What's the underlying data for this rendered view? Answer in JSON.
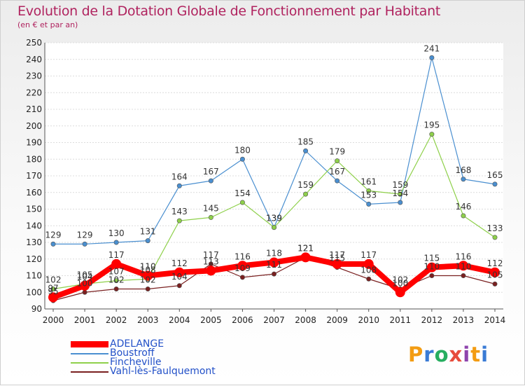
{
  "header": {
    "title": "Evolution de la Dotation Globale de Fonctionnement par Habitant",
    "subtitle": "(en € et par an)"
  },
  "logo": {
    "text": "Proxiti",
    "colors": [
      "#f39c12",
      "#3a7bd5",
      "#27ae60",
      "#e74c3c",
      "#8e44ad"
    ]
  },
  "chart_data": {
    "type": "line",
    "title": "Evolution de la Dotation Globale de Fonctionnement par Habitant",
    "subtitle": "(en € et par an)",
    "x": [
      "2000",
      "2001",
      "2002",
      "2003",
      "2004",
      "2005",
      "2006",
      "2007",
      "2008",
      "2009",
      "2010",
      "2011",
      "2012",
      "2013",
      "2014"
    ],
    "ylim": [
      90,
      250
    ],
    "yticks": [
      90,
      100,
      110,
      120,
      130,
      140,
      150,
      160,
      170,
      180,
      190,
      200,
      210,
      220,
      230,
      240,
      250
    ],
    "grid": "horizontal",
    "legend_position": "bottom-left",
    "series": [
      {
        "name": "ADELANGE",
        "color": "#ff0000",
        "values": [
          97,
          104,
          117,
          110,
          112,
          113,
          116,
          118,
          121,
          117,
          117,
          100,
          115,
          116,
          112
        ]
      },
      {
        "name": "Boustroff",
        "color": "#4a8fd0",
        "values": [
          129,
          129,
          130,
          131,
          164,
          167,
          180,
          139,
          185,
          167,
          153,
          154,
          241,
          168,
          165
        ]
      },
      {
        "name": "Fincheville",
        "color": "#8ed04a",
        "values": [
          102,
          105,
          107,
          108,
          143,
          145,
          154,
          139,
          159,
          179,
          161,
          159,
          195,
          146,
          133
        ]
      },
      {
        "name": "Vahl-lès-Faulquemont",
        "color": "#7a2020",
        "values": [
          95,
          100,
          102,
          102,
          104,
          117,
          109,
          111,
          121,
          115,
          108,
          102,
          110,
          110,
          105
        ]
      }
    ]
  }
}
